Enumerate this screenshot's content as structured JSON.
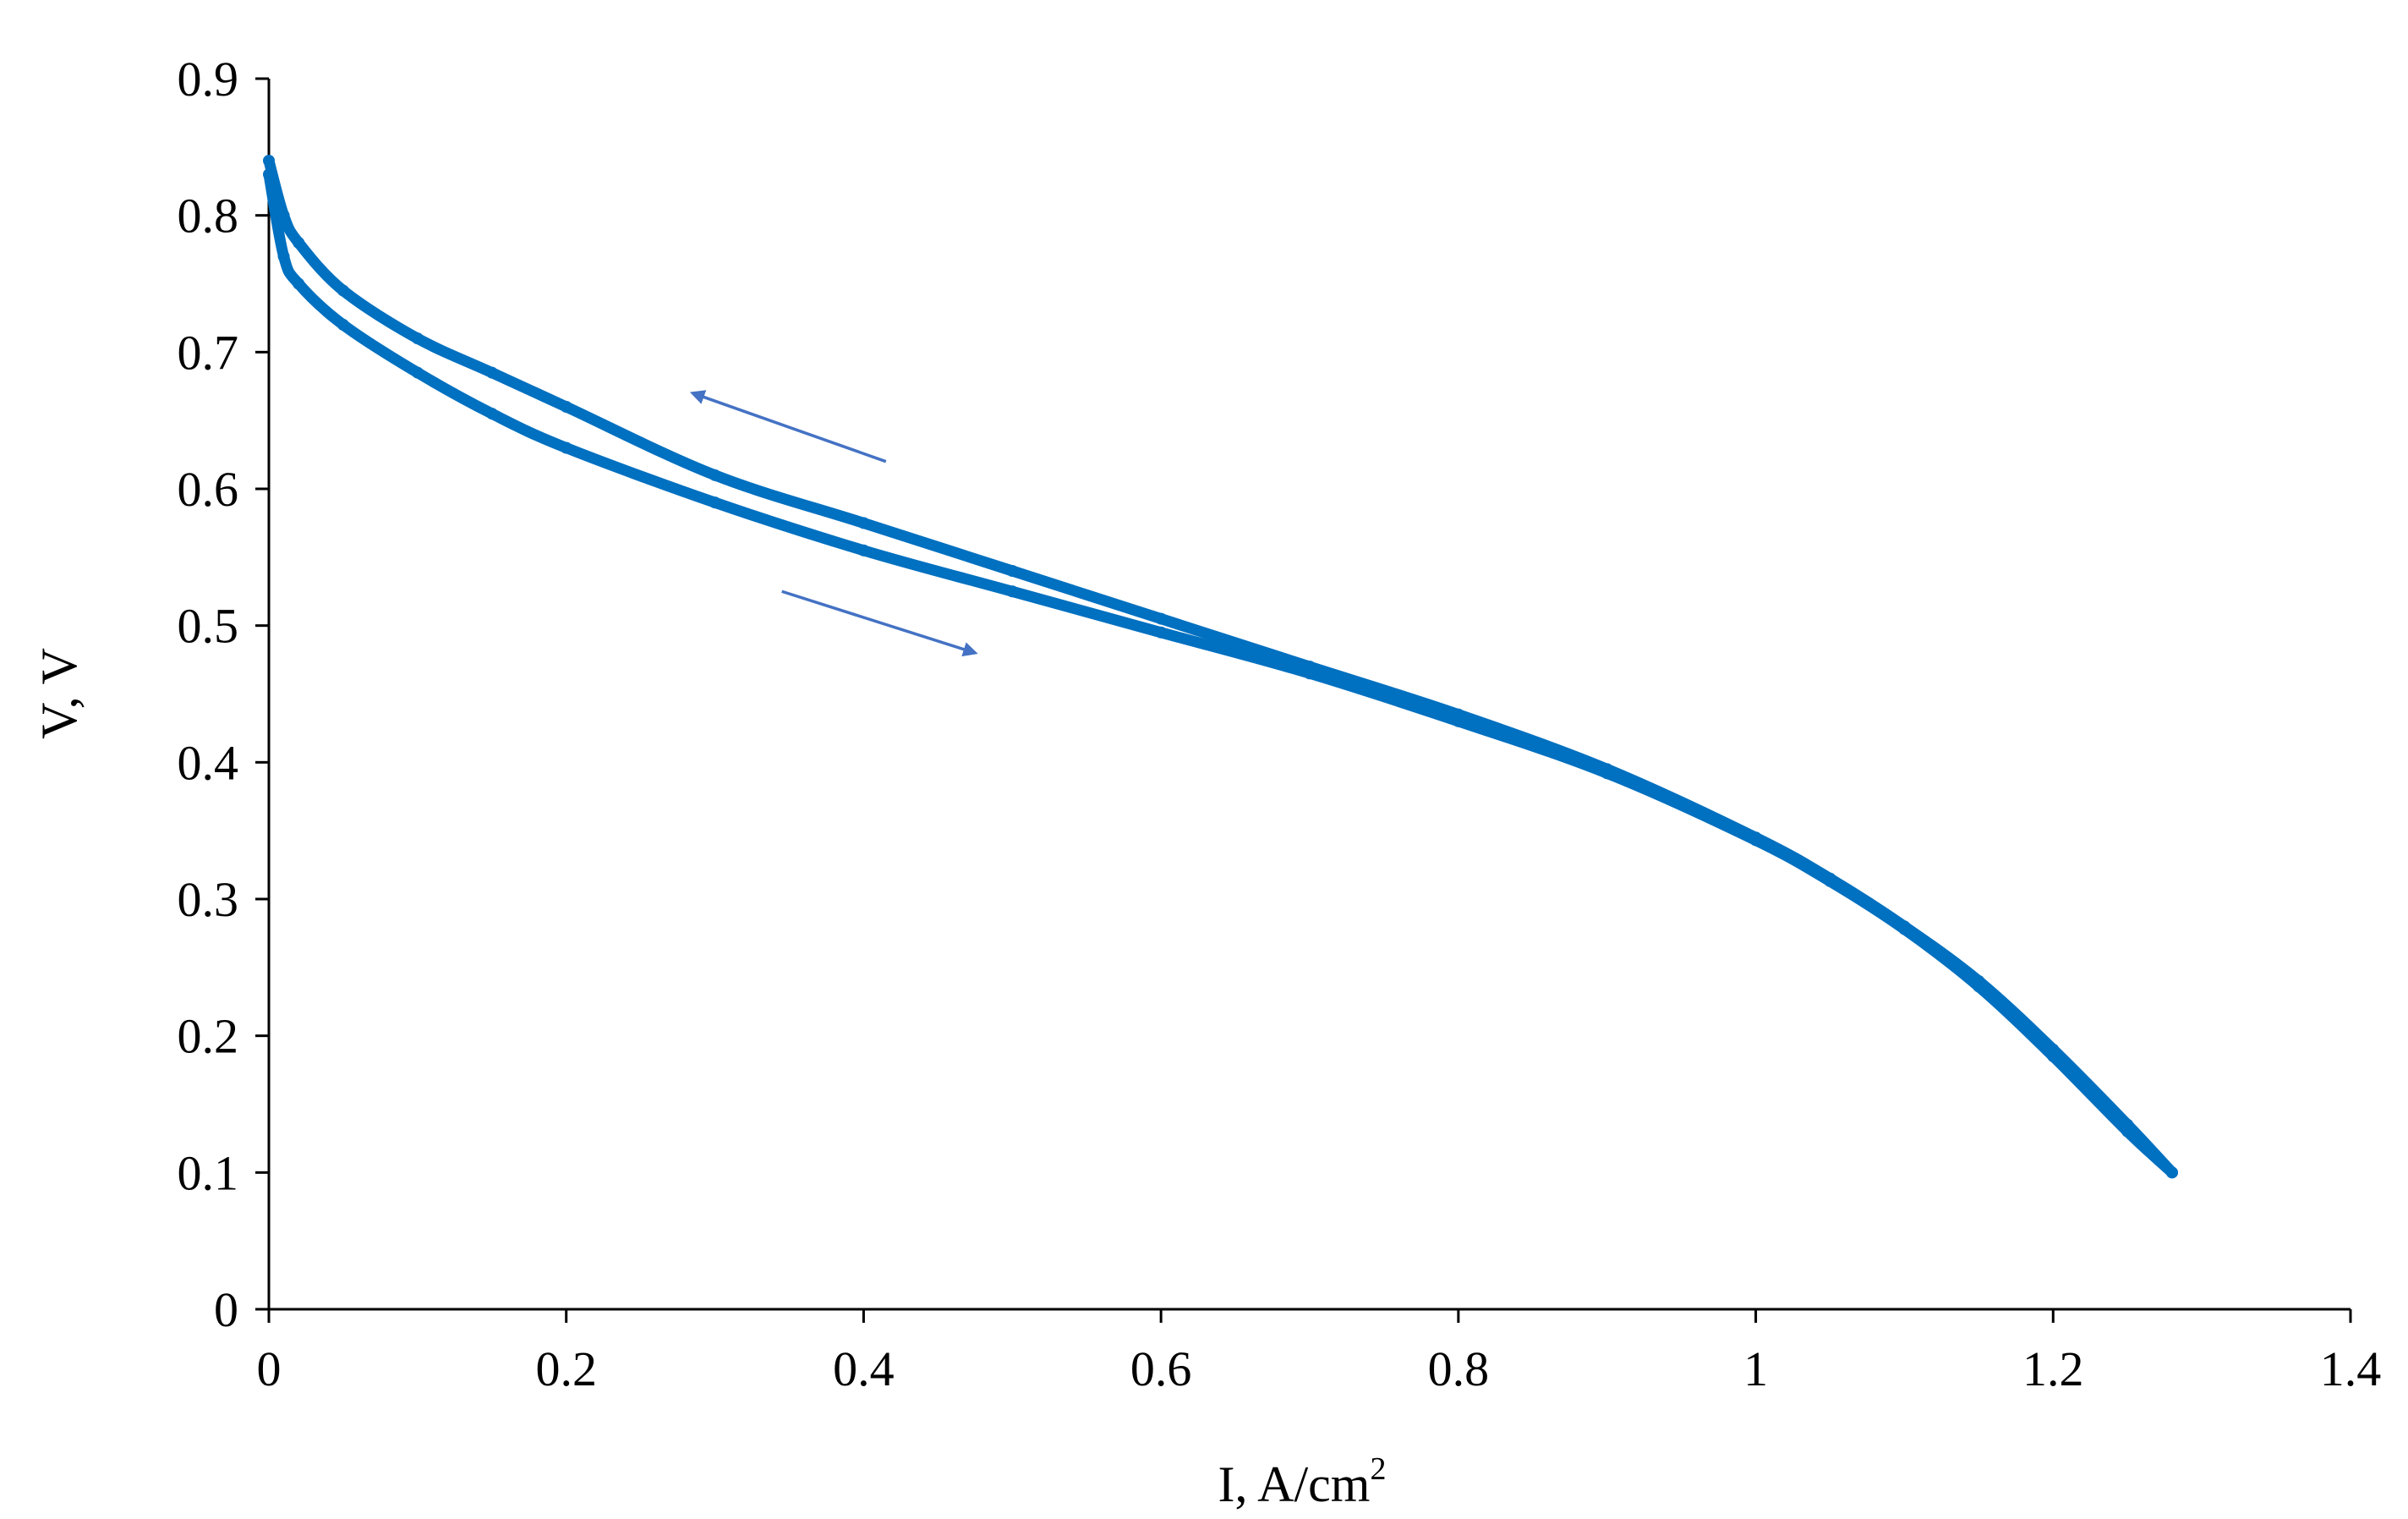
{
  "chart_data": {
    "type": "line",
    "title": "",
    "xlabel": "I, A/cm",
    "xlabel_superscript": "2",
    "ylabel": "V, V",
    "xlim": [
      0,
      1.4
    ],
    "ylim": [
      0,
      0.9
    ],
    "x_ticks": [
      "0",
      "0.2",
      "0.4",
      "0.6",
      "0.8",
      "1",
      "1.2",
      "1.4"
    ],
    "y_ticks": [
      "0",
      "0.1",
      "0.2",
      "0.3",
      "0.4",
      "0.5",
      "0.6",
      "0.7",
      "0.8",
      "0.9"
    ],
    "grid": false,
    "legend": "none",
    "series_color": "#0070C0",
    "arrow_color": "#4472C4",
    "series": [
      {
        "x": [
          0,
          0.01,
          0.02,
          0.05,
          0.1,
          0.15,
          0.2,
          0.3,
          0.4,
          0.5,
          0.6,
          0.7,
          0.8,
          0.9,
          1.0,
          1.05,
          1.1,
          1.15,
          1.2,
          1.25,
          1.28
        ],
        "y": [
          0.84,
          0.8,
          0.78,
          0.745,
          0.71,
          0.685,
          0.66,
          0.61,
          0.575,
          0.54,
          0.505,
          0.47,
          0.435,
          0.395,
          0.345,
          0.315,
          0.28,
          0.24,
          0.19,
          0.135,
          0.1
        ]
      },
      {
        "x": [
          0,
          0.01,
          0.02,
          0.05,
          0.1,
          0.15,
          0.2,
          0.3,
          0.4,
          0.5,
          0.6,
          0.7,
          0.8,
          0.9,
          1.0,
          1.05,
          1.1,
          1.15,
          1.2,
          1.25,
          1.28
        ],
        "y": [
          0.83,
          0.77,
          0.75,
          0.72,
          0.685,
          0.655,
          0.63,
          0.59,
          0.555,
          0.525,
          0.495,
          0.465,
          0.43,
          0.392,
          0.343,
          0.313,
          0.278,
          0.236,
          0.185,
          0.13,
          0.1
        ]
      }
    ],
    "annotations": [
      {
        "type": "arrow",
        "direction": "left",
        "from": [
          0.415,
          0.62
        ],
        "to": [
          0.285,
          0.67
        ]
      },
      {
        "type": "arrow",
        "direction": "right",
        "from": [
          0.345,
          0.525
        ],
        "to": [
          0.475,
          0.48
        ]
      }
    ]
  }
}
